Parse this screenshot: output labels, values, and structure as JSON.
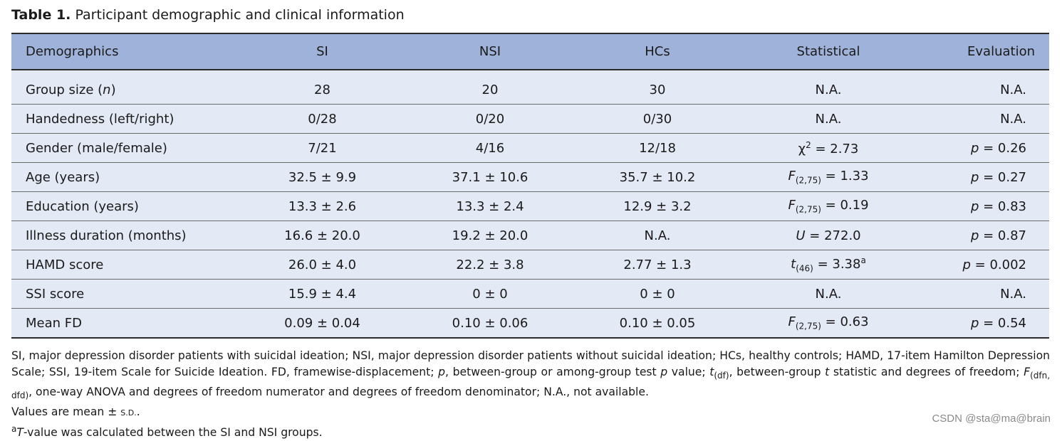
{
  "caption": {
    "label": "Table 1.",
    "title": "Participant demographic and clinical information"
  },
  "table": {
    "headers": [
      "Demographics",
      "SI",
      "NSI",
      "HCs",
      "Statistical",
      "Evaluation"
    ],
    "rows": [
      {
        "label": "Group size (",
        "label_italic": "n",
        "label_tail": ")",
        "si": "28",
        "nsi": "20",
        "hcs": "30",
        "stat": "N.A.",
        "eval": "N.A."
      },
      {
        "label": "Handedness (left/right)",
        "si": "0/28",
        "nsi": "0/20",
        "hcs": "0/30",
        "stat": "N.A.",
        "eval": "N.A."
      },
      {
        "label": "Gender (male/female)",
        "si": "7/21",
        "nsi": "4/16",
        "hcs": "12/18",
        "stat_sym": "χ",
        "stat_sup": "2",
        "stat_val": " = 2.73",
        "eval_p": "p",
        "eval_val": " = 0.26"
      },
      {
        "label": "Age (years)",
        "si": "32.5 ± 9.9",
        "nsi": "37.1 ± 10.6",
        "hcs": "35.7 ± 10.2",
        "stat_sym": "F",
        "stat_sub": "(2,75)",
        "stat_val": " = 1.33",
        "eval_p": "p",
        "eval_val": " = 0.27"
      },
      {
        "label": "Education (years)",
        "si": "13.3 ± 2.6",
        "nsi": "13.3 ± 2.4",
        "hcs": "12.9 ± 3.2",
        "stat_sym": "F",
        "stat_sub": "(2,75)",
        "stat_val": " = 0.19",
        "eval_p": "p",
        "eval_val": " = 0.83"
      },
      {
        "label": "Illness duration (months)",
        "si": "16.6 ± 20.0",
        "nsi": "19.2 ± 20.0",
        "hcs": "N.A.",
        "stat_sym": "U",
        "stat_val": " = 272.0",
        "eval_p": "p",
        "eval_val": " = 0.87"
      },
      {
        "label": "HAMD score",
        "si": "26.0 ± 4.0",
        "nsi": "22.2 ± 3.8",
        "hcs": "2.77 ± 1.3",
        "stat_sym": "t",
        "stat_sub": "(46)",
        "stat_val": " = 3.38",
        "stat_sup": "a",
        "eval_p": "p",
        "eval_val": " = 0.002"
      },
      {
        "label": "SSI score",
        "si": "15.9 ± 4.4",
        "nsi": "0 ± 0",
        "hcs": "0 ± 0",
        "stat": "N.A.",
        "eval": "N.A."
      },
      {
        "label": "Mean FD",
        "si": "0.09 ± 0.04",
        "nsi": "0.10 ± 0.06",
        "hcs": "0.10 ± 0.05",
        "stat_sym": "F",
        "stat_sub": "(2,75)",
        "stat_val": " = 0.63",
        "eval_p": "p",
        "eval_val": " = 0.54"
      }
    ]
  },
  "notes": {
    "abbrev_1": "SI, major depression disorder patients with suicidal ideation; NSI, major depression disorder patients without suicidal ideation; HCs, healthy controls; HAMD, 17-item Hamilton Depression Scale; SSI, 19-item Scale for Suicide Ideation. FD, framewise-displacement; ",
    "abbrev_p": "p",
    "abbrev_2": ", between-group or among-group test ",
    "abbrev_p2": "p",
    "abbrev_3": " value; ",
    "abbrev_t": "t",
    "abbrev_t_sub": "(df)",
    "abbrev_4": ", between-group ",
    "abbrev_t2": "t",
    "abbrev_5": " statistic and degrees of freedom; ",
    "abbrev_F": "F",
    "abbrev_F_sub": "(dfn, dfd)",
    "abbrev_6": ", one-way ANOVA and degrees of freedom numerator and degrees of freedom denominator; N.A., not available.",
    "values_pre": "Values are mean ± ",
    "values_sd": "S.D.",
    "values_post": ".",
    "footnote_mark": "a",
    "footnote_italic": "T",
    "footnote_text": "-value was calculated between the SI and NSI groups."
  },
  "watermark": "CSDN @sta@ma@brain"
}
